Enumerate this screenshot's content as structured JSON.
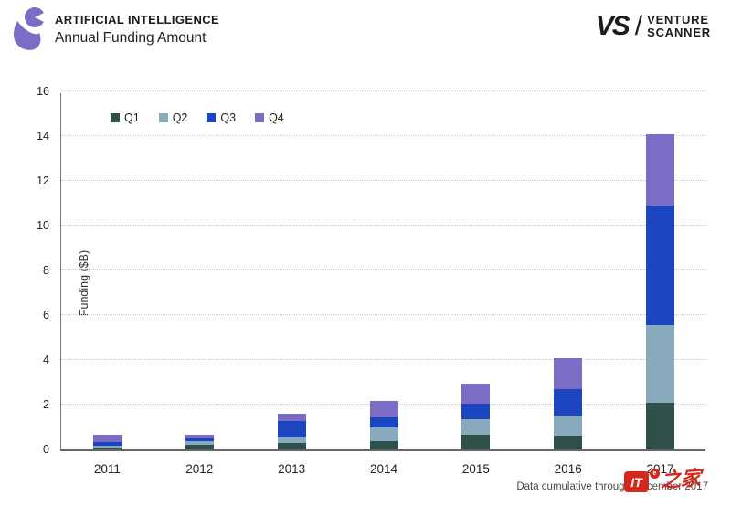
{
  "header": {
    "category_label": "ARTIFICIAL INTELLIGENCE",
    "title": "Annual Funding Amount"
  },
  "brand": {
    "monogram": "VS",
    "slash": "/",
    "word1": "VENTURE",
    "word2": "SCANNER"
  },
  "chart_data": {
    "type": "bar",
    "stacked": true,
    "title": "Annual Funding Amount",
    "categories": [
      "2011",
      "2012",
      "2013",
      "2014",
      "2015",
      "2016",
      "2017"
    ],
    "series": [
      {
        "name": "Q1",
        "color": "#2f4f4a",
        "values": [
          0.1,
          0.22,
          0.3,
          0.35,
          0.65,
          0.6,
          2.1
        ]
      },
      {
        "name": "Q2",
        "color": "#87abbd",
        "values": [
          0.06,
          0.13,
          0.25,
          0.65,
          0.7,
          0.9,
          3.45
        ]
      },
      {
        "name": "Q3",
        "color": "#1b46c0",
        "values": [
          0.17,
          0.16,
          0.7,
          0.45,
          0.7,
          1.2,
          5.35
        ]
      },
      {
        "name": "Q4",
        "color": "#7b6dc5",
        "values": [
          0.32,
          0.16,
          0.35,
          0.7,
          0.9,
          1.4,
          3.2
        ]
      }
    ],
    "totals": [
      0.65,
      0.67,
      1.6,
      2.15,
      2.95,
      4.1,
      14.1
    ],
    "xlabel": "",
    "ylabel": "Funding ($B)",
    "ylim": [
      0,
      16
    ],
    "yticks": [
      0,
      2,
      4,
      6,
      8,
      10,
      12,
      14,
      16
    ],
    "grid": "horizontal dotted",
    "legend_position": "inside top-left"
  },
  "footer": {
    "note": "Data cumulative through December 2017"
  },
  "watermark": {
    "box_text": "IT",
    "badge_text": "e",
    "cn_text": "之家"
  },
  "colors": {
    "logo_purple": "#7b6dc5",
    "brand_black": "#1d1d1d",
    "watermark_red": "#d2281e",
    "axis": "#666666",
    "gridline": "#c9c9c9"
  }
}
